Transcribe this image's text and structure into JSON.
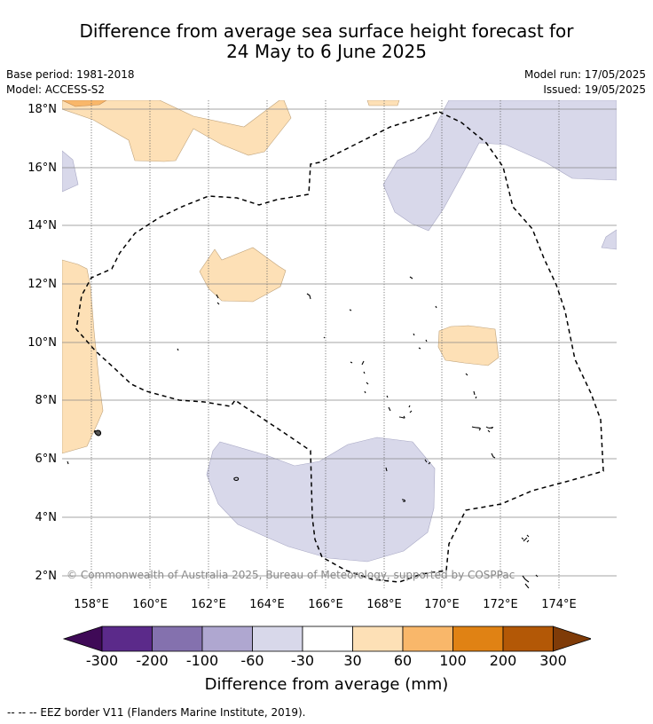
{
  "title": {
    "line1": "Difference from average sea surface height forecast for",
    "line2": "24 May to 6 June 2025"
  },
  "meta": {
    "base_period": "Base period: 1981-2018",
    "model": "Model: ACCESS-S2",
    "model_run": "Model run: 17/05/2025",
    "issued": "Issued: 19/05/2025"
  },
  "map": {
    "lat_labels": [
      "18°N",
      "16°N",
      "14°N",
      "12°N",
      "10°N",
      "8°N",
      "6°N",
      "4°N",
      "2°N"
    ],
    "lon_labels": [
      "158°E",
      "160°E",
      "162°E",
      "164°E",
      "166°E",
      "168°E",
      "170°E",
      "172°E",
      "174°E"
    ],
    "copyright": "© Commonwealth of Australia 2025, Bureau of Meteorology, supported by COSPPac",
    "colors": {
      "neg_60_30": "#d8d8ea",
      "pos_30_60": "#fde0b6",
      "pos_60_100": "#f9b76a",
      "land": "#000000",
      "eez": "#000000"
    }
  },
  "colorbar": {
    "ticks": [
      "-300",
      "-200",
      "-100",
      "-60",
      "-30",
      "30",
      "60",
      "100",
      "200",
      "300"
    ],
    "colors": [
      "#3f0a57",
      "#5b2a8a",
      "#8471ae",
      "#afa7d0",
      "#d8d8ea",
      "#ffffff",
      "#fde0b6",
      "#f9b76a",
      "#e08214",
      "#b35806",
      "#7f3b08"
    ],
    "title": "Difference from average (mm)"
  },
  "footnote": "--  --  -- EEZ border V11 (Flanders Marine Institute, 2019)."
}
